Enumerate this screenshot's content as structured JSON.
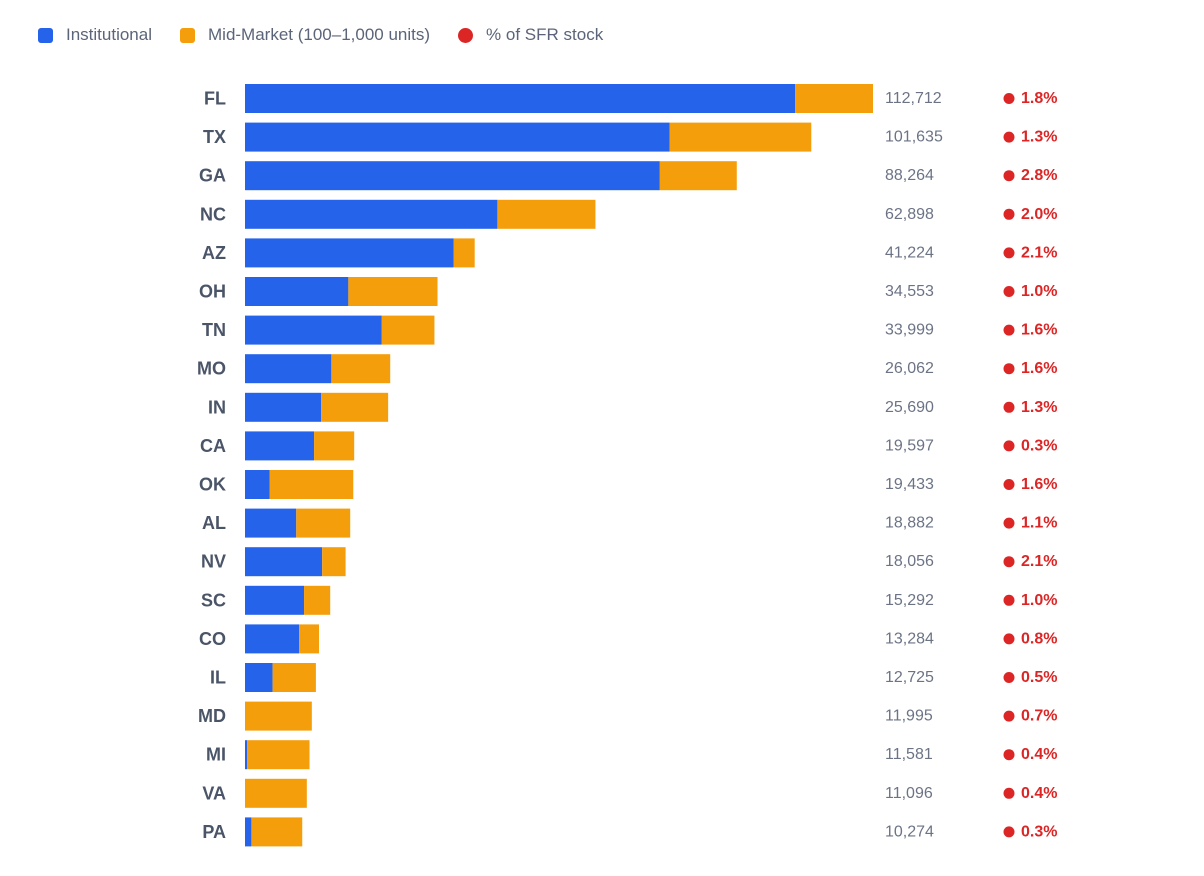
{
  "chart_data": {
    "type": "bar",
    "orientation": "horizontal",
    "stacked": true,
    "legend": [
      {
        "key": "institutional",
        "label": "Institutional",
        "color": "#2563eb",
        "marker": "square"
      },
      {
        "key": "mid_market",
        "label": "Mid-Market (100–1,000 units)",
        "color": "#f59e0b",
        "marker": "square"
      },
      {
        "key": "pct_sfr",
        "label": "% of SFR stock",
        "color": "#dc2626",
        "marker": "circle"
      }
    ],
    "categories": [
      "FL",
      "TX",
      "GA",
      "NC",
      "AZ",
      "OH",
      "TN",
      "MO",
      "IN",
      "CA",
      "OK",
      "AL",
      "NV",
      "SC",
      "CO",
      "IL",
      "MD",
      "MI",
      "VA",
      "PA"
    ],
    "series": [
      {
        "name": "Institutional",
        "color": "#2563eb",
        "values": [
          98750,
          76200,
          74450,
          45300,
          37470,
          18550,
          24550,
          15500,
          13650,
          12400,
          4400,
          9200,
          13850,
          10600,
          9700,
          4950,
          0,
          400,
          0,
          1150
        ]
      },
      {
        "name": "Mid-Market (100–1,000 units)",
        "color": "#f59e0b",
        "values": [
          13962,
          25435,
          13814,
          17598,
          3754,
          16003,
          9449,
          10562,
          12040,
          7197,
          15033,
          9682,
          4206,
          4692,
          3584,
          7775,
          11995,
          11181,
          11096,
          9124
        ]
      }
    ],
    "totals": [
      "112,712",
      "101,635",
      "88,264",
      "62,898",
      "41,224",
      "34,553",
      "33,999",
      "26,062",
      "25,690",
      "19,597",
      "19,433",
      "18,882",
      "18,056",
      "15,292",
      "13,284",
      "12,725",
      "11,995",
      "11,581",
      "11,096",
      "10,274"
    ],
    "pct_sfr_stock": [
      "1.8%",
      "1.3%",
      "2.8%",
      "2.0%",
      "2.1%",
      "1.0%",
      "1.6%",
      "1.6%",
      "1.3%",
      "0.3%",
      "1.6%",
      "1.1%",
      "2.1%",
      "1.0%",
      "0.8%",
      "0.5%",
      "0.7%",
      "0.4%",
      "0.4%",
      "0.3%"
    ],
    "xlim": [
      0,
      112712
    ],
    "title": "",
    "xlabel": "",
    "ylabel": ""
  }
}
